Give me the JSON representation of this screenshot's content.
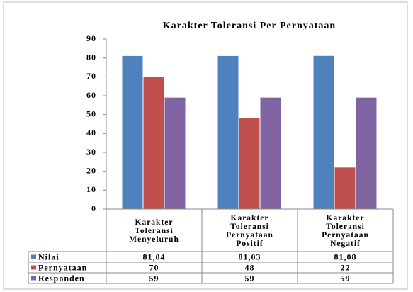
{
  "chart_data": {
    "type": "bar",
    "title": "Karakter Toleransi Per Pernyataan",
    "categories": [
      "Karakter Toleransi Menyeluruh",
      "Karakter Toleransi Pernyataan Positif",
      "Karakter Toleransi Pernyataan Negatif"
    ],
    "series": [
      {
        "name": "Nilai",
        "color": "#4f81bd",
        "values": [
          81.04,
          81.03,
          81.08
        ],
        "value_labels": [
          "81,04",
          "81,03",
          "81,08"
        ]
      },
      {
        "name": "Pernyataan",
        "color": "#c0504d",
        "values": [
          70,
          48,
          22
        ]
      },
      {
        "name": "Responden",
        "color": "#8064a2",
        "values": [
          59,
          59,
          59
        ]
      }
    ],
    "ylim": [
      0,
      90
    ],
    "yticks": [
      0,
      10,
      20,
      30,
      40,
      50,
      60,
      70,
      80,
      90
    ],
    "grid": false
  }
}
